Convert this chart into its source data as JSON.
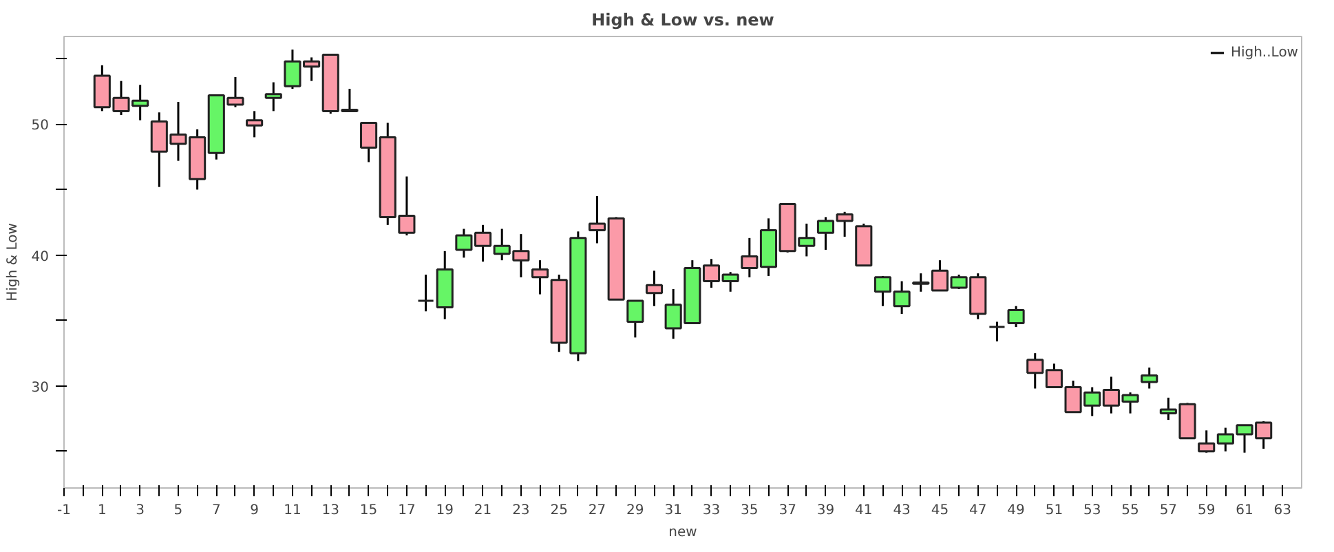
{
  "chart_data": {
    "type": "candlestick",
    "title": "High & Low vs. new",
    "xlabel": "new",
    "ylabel": "High & Low",
    "x": [
      1,
      2,
      3,
      4,
      5,
      6,
      7,
      8,
      9,
      10,
      11,
      12,
      13,
      14,
      15,
      16,
      17,
      18,
      19,
      20,
      21,
      22,
      23,
      24,
      25,
      26,
      27,
      28,
      29,
      30,
      31,
      32,
      33,
      34,
      35,
      36,
      37,
      38,
      39,
      40,
      41,
      42,
      43,
      44,
      45,
      46,
      47,
      48,
      49,
      50,
      51,
      52,
      53,
      54,
      55,
      56,
      57,
      58,
      59,
      60,
      61,
      62
    ],
    "series": [
      {
        "name": "High..Low",
        "ohlc": [
          [
            53.7,
            54.5,
            51.0,
            51.3
          ],
          [
            52.0,
            53.3,
            50.7,
            51.0
          ],
          [
            51.4,
            53.0,
            50.3,
            51.8
          ],
          [
            50.2,
            50.9,
            45.2,
            47.9
          ],
          [
            49.2,
            51.7,
            47.2,
            48.5
          ],
          [
            49.0,
            49.6,
            45.0,
            45.8
          ],
          [
            47.8,
            52.2,
            47.3,
            52.2
          ],
          [
            52.0,
            53.6,
            51.3,
            51.5
          ],
          [
            50.3,
            51.0,
            49.0,
            49.9
          ],
          [
            52.0,
            53.2,
            51.0,
            52.3
          ],
          [
            52.9,
            55.7,
            52.7,
            54.8
          ],
          [
            54.8,
            55.1,
            53.3,
            54.4
          ],
          [
            55.3,
            55.3,
            50.8,
            51.0
          ],
          [
            51.1,
            52.7,
            51.0,
            51.0
          ],
          [
            50.1,
            50.1,
            47.1,
            48.2
          ],
          [
            49.0,
            50.1,
            42.3,
            42.9
          ],
          [
            43.0,
            46.0,
            41.5,
            41.7
          ],
          [
            36.5,
            38.5,
            35.7,
            36.5
          ],
          [
            36.0,
            40.3,
            35.1,
            38.9
          ],
          [
            40.4,
            42.0,
            39.8,
            41.5
          ],
          [
            41.7,
            42.3,
            39.5,
            40.7
          ],
          [
            40.1,
            42.0,
            39.6,
            40.7
          ],
          [
            40.3,
            41.6,
            38.3,
            39.6
          ],
          [
            38.9,
            39.6,
            37.0,
            38.3
          ],
          [
            38.1,
            38.5,
            32.6,
            33.3
          ],
          [
            32.5,
            41.8,
            31.9,
            41.3
          ],
          [
            42.4,
            44.5,
            40.9,
            41.9
          ],
          [
            42.8,
            42.9,
            36.6,
            36.6
          ],
          [
            34.9,
            36.5,
            33.7,
            36.5
          ],
          [
            37.7,
            38.8,
            36.1,
            37.1
          ],
          [
            34.4,
            37.4,
            33.6,
            36.2
          ],
          [
            34.8,
            39.6,
            34.8,
            39.0
          ],
          [
            39.2,
            39.7,
            37.5,
            38.0
          ],
          [
            38.0,
            38.7,
            37.2,
            38.5
          ],
          [
            39.9,
            41.3,
            38.3,
            39.0
          ],
          [
            39.1,
            42.8,
            38.4,
            41.9
          ],
          [
            43.9,
            43.9,
            40.2,
            40.3
          ],
          [
            40.7,
            42.4,
            39.9,
            41.3
          ],
          [
            41.7,
            42.9,
            40.4,
            42.6
          ],
          [
            43.1,
            43.3,
            41.4,
            42.6
          ],
          [
            42.2,
            42.4,
            39.2,
            39.2
          ],
          [
            37.2,
            38.4,
            36.1,
            38.3
          ],
          [
            36.1,
            38.0,
            35.5,
            37.2
          ],
          [
            37.8,
            38.6,
            37.2,
            37.9
          ],
          [
            38.8,
            39.6,
            37.3,
            37.3
          ],
          [
            37.5,
            38.5,
            37.4,
            38.3
          ],
          [
            38.3,
            38.6,
            35.1,
            35.5
          ],
          [
            34.5,
            34.9,
            33.4,
            34.5
          ],
          [
            34.8,
            36.1,
            34.5,
            35.8
          ],
          [
            32.0,
            32.5,
            29.8,
            31.0
          ],
          [
            31.2,
            31.7,
            29.9,
            29.9
          ],
          [
            29.9,
            30.4,
            28.0,
            28.0
          ],
          [
            28.5,
            29.9,
            27.7,
            29.5
          ],
          [
            29.7,
            30.7,
            27.9,
            28.5
          ],
          [
            28.8,
            29.5,
            27.9,
            29.3
          ],
          [
            30.3,
            31.4,
            29.8,
            30.8
          ],
          [
            27.9,
            29.1,
            27.4,
            28.2
          ],
          [
            28.6,
            28.7,
            26.0,
            26.0
          ],
          [
            25.6,
            26.6,
            24.9,
            25.0
          ],
          [
            25.6,
            26.8,
            25.0,
            26.3
          ],
          [
            26.3,
            27.0,
            24.9,
            27.0
          ],
          [
            27.2,
            27.3,
            25.2,
            26.0
          ]
        ],
        "colors": [
          "#fb9aa8",
          "#fb9aa8",
          "#66f566",
          "#fb9aa8",
          "#fb9aa8",
          "#fb9aa8",
          "#66f566",
          "#fb9aa8",
          "#fb9aa8",
          "#66f566",
          "#66f566",
          "#fb9aa8",
          "#fb9aa8",
          "#fb9aa8",
          "#fb9aa8",
          "#fb9aa8",
          "#fb9aa8",
          "#222222",
          "#66f566",
          "#66f566",
          "#fb9aa8",
          "#66f566",
          "#fb9aa8",
          "#fb9aa8",
          "#fb9aa8",
          "#66f566",
          "#fb9aa8",
          "#fb9aa8",
          "#66f566",
          "#fb9aa8",
          "#66f566",
          "#66f566",
          "#fb9aa8",
          "#66f566",
          "#fb9aa8",
          "#66f566",
          "#fb9aa8",
          "#66f566",
          "#66f566",
          "#fb9aa8",
          "#fb9aa8",
          "#66f566",
          "#66f566",
          "#66f566",
          "#fb9aa8",
          "#66f566",
          "#fb9aa8",
          "#222222",
          "#66f566",
          "#fb9aa8",
          "#fb9aa8",
          "#fb9aa8",
          "#66f566",
          "#fb9aa8",
          "#66f566",
          "#66f566",
          "#66f566",
          "#fb9aa8",
          "#fb9aa8",
          "#66f566",
          "#66f566",
          "#fb9aa8"
        ]
      }
    ],
    "xlim": [
      -1,
      64
    ],
    "xticks": [
      -1,
      {
        "value": 0,
        "label": null
      },
      1,
      {
        "value": 2,
        "label": null
      },
      3,
      {
        "value": 4,
        "label": null
      },
      5,
      {
        "value": 6,
        "label": null
      },
      7,
      {
        "value": 8,
        "label": null
      },
      9,
      {
        "value": 10,
        "label": null
      },
      11,
      {
        "value": 12,
        "label": null
      },
      13,
      {
        "value": 14,
        "label": null
      },
      15,
      {
        "value": 16,
        "label": null
      },
      17,
      {
        "value": 18,
        "label": null
      },
      19,
      {
        "value": 20,
        "label": null
      },
      21,
      {
        "value": 22,
        "label": null
      },
      23,
      {
        "value": 24,
        "label": null
      },
      25,
      {
        "value": 26,
        "label": null
      },
      27,
      {
        "value": 28,
        "label": null
      },
      29,
      {
        "value": 30,
        "label": null
      },
      31,
      {
        "value": 32,
        "label": null
      },
      33,
      {
        "value": 34,
        "label": null
      },
      35,
      {
        "value": 36,
        "label": null
      },
      37,
      {
        "value": 38,
        "label": null
      },
      39,
      {
        "value": 40,
        "label": null
      },
      41,
      {
        "value": 42,
        "label": null
      },
      43,
      {
        "value": 44,
        "label": null
      },
      45,
      {
        "value": 46,
        "label": null
      },
      47,
      {
        "value": 48,
        "label": null
      },
      49,
      {
        "value": 50,
        "label": null
      },
      51,
      {
        "value": 52,
        "label": null
      },
      53,
      {
        "value": 54,
        "label": null
      },
      55,
      {
        "value": 56,
        "label": null
      },
      57,
      {
        "value": 58,
        "label": null
      },
      59,
      {
        "value": 60,
        "label": null
      },
      61,
      {
        "value": 62,
        "label": null
      },
      63
    ],
    "ylim": [
      22.2,
      56.7
    ],
    "yticks": [
      {
        "value": 25,
        "label": null
      },
      30,
      {
        "value": 35,
        "label": null
      },
      40,
      {
        "value": 45,
        "label": null
      },
      50,
      {
        "value": 55,
        "label": null
      }
    ],
    "grid": false,
    "legend": "top right"
  }
}
